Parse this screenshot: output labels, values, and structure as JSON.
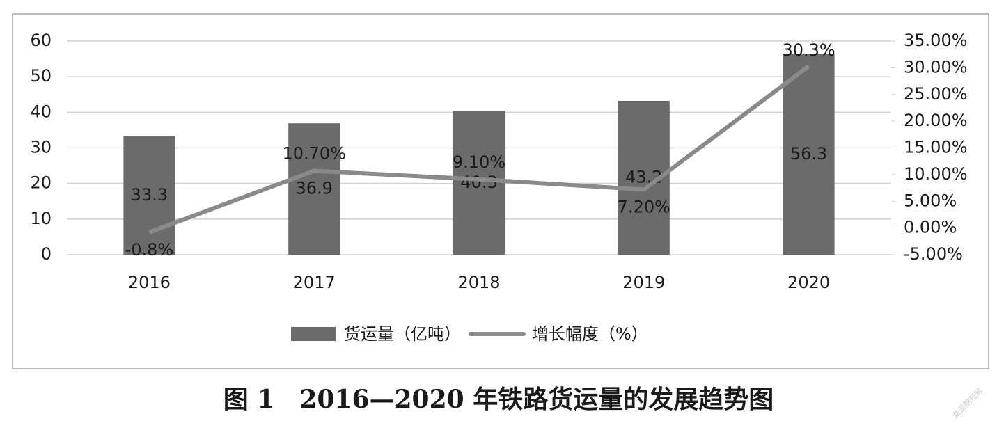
{
  "chart_data": {
    "type": "bar-line",
    "categories": [
      "2016",
      "2017",
      "2018",
      "2019",
      "2020"
    ],
    "series": [
      {
        "name": "货运量（亿吨）",
        "type": "bar",
        "color": "#6b6b6b",
        "values": [
          33.3,
          36.9,
          40.3,
          43.2,
          56.3
        ]
      },
      {
        "name": "增长幅度（%）",
        "type": "line",
        "axis": "y2",
        "color": "#8a8a8a",
        "values": [
          -0.8,
          10.7,
          9.1,
          7.2,
          30.3
        ],
        "value_labels": [
          "-0.8%",
          "10.70%",
          "9.10%",
          "7.20%",
          "30.3%"
        ]
      }
    ],
    "ylim": [
      0,
      60
    ],
    "yticks": [
      0,
      10,
      20,
      30,
      40,
      50,
      60
    ],
    "y2lim": [
      -5,
      35
    ],
    "y2ticks": [
      {
        "value": -5,
        "label": "-5.00%"
      },
      {
        "value": 0,
        "label": "0.00%"
      },
      {
        "value": 5,
        "label": "5.00%"
      },
      {
        "value": 10,
        "label": "10.00%"
      },
      {
        "value": 15,
        "label": "15.00%"
      },
      {
        "value": 20,
        "label": "20.00%"
      },
      {
        "value": 25,
        "label": "25.00%"
      },
      {
        "value": 30,
        "label": "30.00%"
      },
      {
        "value": 35,
        "label": "35.00%"
      }
    ],
    "grid": true,
    "legend": "bottom",
    "caption": "图 1　2016—2020 年铁路货运量的发展趋势图",
    "watermark": "龙源期刊网"
  }
}
